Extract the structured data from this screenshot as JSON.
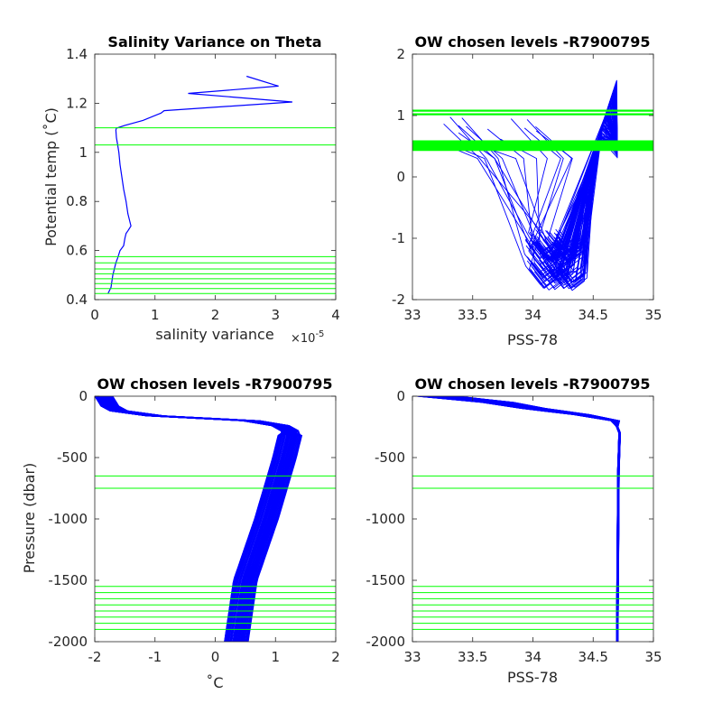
{
  "chart_data": [
    {
      "type": "line",
      "title": "Salinity Variance on Theta",
      "xlabel": "salinity variance",
      "ylabel": "Potential temp (˚C)",
      "x_exponent_label": "×10",
      "x_exponent_power": "-5",
      "xlim": [
        0,
        4
      ],
      "ylim": [
        0.4,
        1.4
      ],
      "xticks": [
        "0",
        "1",
        "2",
        "3",
        "4"
      ],
      "yticks": [
        "0.4",
        "0.6",
        "0.8",
        "1",
        "1.2",
        "1.4"
      ],
      "grid": false,
      "series": [
        {
          "color": "#0000ff",
          "x": [
            0.22,
            0.27,
            0.3,
            0.35,
            0.38,
            0.42,
            0.48,
            0.5,
            0.52,
            0.55,
            0.6,
            0.55,
            0.52,
            0.48,
            0.45,
            0.42,
            0.4,
            0.38,
            0.36,
            0.35,
            0.36,
            0.38,
            0.5,
            0.8,
            1.1,
            1.15,
            3.28,
            1.55,
            3.05,
            2.52
          ],
          "y": [
            0.425,
            0.45,
            0.5,
            0.55,
            0.57,
            0.6,
            0.62,
            0.65,
            0.67,
            0.68,
            0.7,
            0.75,
            0.8,
            0.85,
            0.9,
            0.95,
            1.0,
            1.03,
            1.06,
            1.09,
            1.1,
            1.1,
            1.11,
            1.13,
            1.16,
            1.17,
            1.205,
            1.24,
            1.27,
            1.31
          ]
        }
      ],
      "hlines_color": "#00ff00",
      "hlines": [
        1.1,
        1.03,
        0.575,
        0.55,
        0.525,
        0.505,
        0.485,
        0.465,
        0.445,
        0.425
      ]
    },
    {
      "type": "line",
      "title": "OW chosen levels -R7900795",
      "xlabel": "PSS-78",
      "ylabel": "",
      "xlim": [
        33,
        35
      ],
      "ylim": [
        -2,
        2
      ],
      "xticks": [
        "33",
        "33.5",
        "34",
        "34.5",
        "35"
      ],
      "yticks": [
        "-2",
        "-1",
        "0",
        "1",
        "2"
      ],
      "grid": false,
      "series_color": "#0000ff",
      "series_count_note": "",
      "hlines_color": "#00ff00",
      "hlines": [
        1.08,
        1.02,
        0.58,
        0.56,
        0.54,
        0.52,
        0.5,
        0.48,
        0.46,
        0.44
      ]
    },
    {
      "type": "line",
      "title": "OW chosen levels -R7900795",
      "xlabel": "˚C",
      "ylabel": "Pressure (dbar)",
      "xlim": [
        -2,
        2
      ],
      "ylim": [
        -2000,
        0
      ],
      "xticks": [
        "-2",
        "-1",
        "0",
        "1",
        "2"
      ],
      "yticks": [
        "-2000",
        "-1500",
        "-1000",
        "-500",
        "0"
      ],
      "grid": false,
      "series_color": "#0000ff",
      "hlines_color": "#00ff00",
      "hlines": [
        -650,
        -750,
        -1550,
        -1600,
        -1650,
        -1700,
        -1750,
        -1800,
        -1850,
        -1900
      ]
    },
    {
      "type": "line",
      "title": "OW chosen levels -R7900795",
      "xlabel": "PSS-78",
      "ylabel": "",
      "xlim": [
        33,
        35
      ],
      "ylim": [
        -2000,
        0
      ],
      "xticks": [
        "33",
        "33.5",
        "34",
        "34.5",
        "35"
      ],
      "yticks": [
        "-2000",
        "-1500",
        "-1000",
        "-500",
        "0"
      ],
      "grid": false,
      "series_color": "#0000ff",
      "hlines_color": "#00ff00",
      "hlines": [
        -650,
        -750,
        -1550,
        -1600,
        -1650,
        -1700,
        -1750,
        -1800,
        -1850,
        -1900
      ]
    }
  ]
}
